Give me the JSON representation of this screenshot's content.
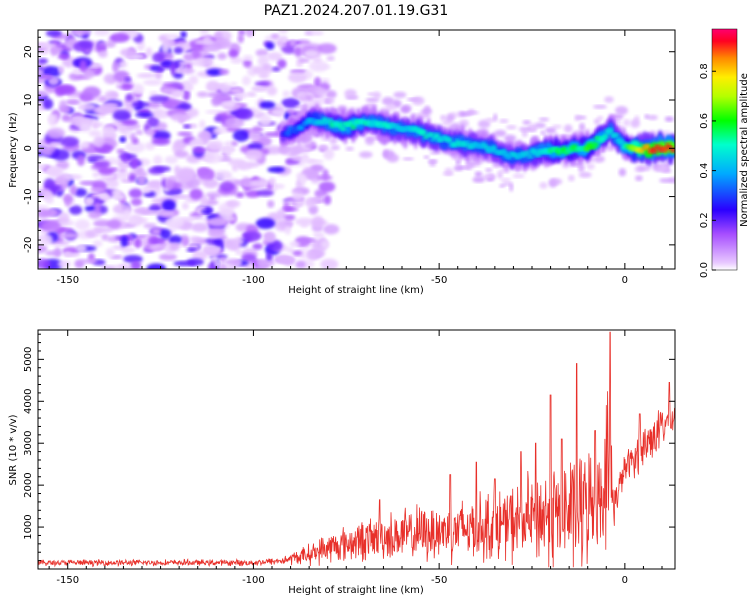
{
  "title": "PAZ1.2024.207.01.19.G31",
  "chart_data": [
    {
      "type": "heatmap",
      "xlabel": "Height of straight line (km)",
      "ylabel": "Frequency (Hz)",
      "xlim": [
        -158,
        13.5
      ],
      "ylim": [
        -25,
        24.5
      ],
      "xticks": [
        -150,
        -100,
        -50,
        0
      ],
      "yticks": [
        -20,
        -10,
        0,
        10,
        20
      ],
      "colorbar": {
        "label": "Normalized spectral amplitude",
        "range": [
          0,
          0.97
        ],
        "ticks": [
          0.0,
          0.2,
          0.4,
          0.6,
          0.8
        ]
      },
      "noise_region_x": [
        -158,
        -83
      ],
      "signal_track": [
        {
          "x": -92,
          "f": 2.5,
          "a": 0.28
        },
        {
          "x": -88,
          "f": 4.5,
          "a": 0.35
        },
        {
          "x": -84,
          "f": 6.0,
          "a": 0.4
        },
        {
          "x": -80,
          "f": 5.5,
          "a": 0.5
        },
        {
          "x": -76,
          "f": 4.5,
          "a": 0.55
        },
        {
          "x": -72,
          "f": 5.0,
          "a": 0.56
        },
        {
          "x": -68,
          "f": 5.5,
          "a": 0.5
        },
        {
          "x": -64,
          "f": 4.5,
          "a": 0.5
        },
        {
          "x": -60,
          "f": 4.0,
          "a": 0.47
        },
        {
          "x": -56,
          "f": 3.5,
          "a": 0.5
        },
        {
          "x": -52,
          "f": 2.5,
          "a": 0.5
        },
        {
          "x": -48,
          "f": 1.5,
          "a": 0.45
        },
        {
          "x": -44,
          "f": 1.0,
          "a": 0.5
        },
        {
          "x": -40,
          "f": 0.5,
          "a": 0.45
        },
        {
          "x": -36,
          "f": 0.0,
          "a": 0.45
        },
        {
          "x": -32,
          "f": -1.5,
          "a": 0.45
        },
        {
          "x": -28,
          "f": -1.5,
          "a": 0.45
        },
        {
          "x": -24,
          "f": -1.0,
          "a": 0.5
        },
        {
          "x": -20,
          "f": -0.5,
          "a": 0.55
        },
        {
          "x": -16,
          "f": -0.5,
          "a": 0.6
        },
        {
          "x": -12,
          "f": 0.0,
          "a": 0.55
        },
        {
          "x": -9,
          "f": 0.5,
          "a": 0.65
        },
        {
          "x": -6,
          "f": 2.5,
          "a": 0.55
        },
        {
          "x": -4,
          "f": 4.0,
          "a": 0.5
        },
        {
          "x": -2,
          "f": 2.0,
          "a": 0.45
        },
        {
          "x": 0,
          "f": 0.5,
          "a": 0.55
        },
        {
          "x": 3,
          "f": 0.0,
          "a": 0.75
        },
        {
          "x": 7,
          "f": 0.0,
          "a": 0.9
        },
        {
          "x": 11,
          "f": 0.0,
          "a": 0.95
        },
        {
          "x": 13.5,
          "f": 0.0,
          "a": 0.95
        }
      ]
    },
    {
      "type": "line",
      "xlabel": "Height of straight line (km)",
      "ylabel": "SNR (10 * v/v)",
      "xlim": [
        -158,
        13.5
      ],
      "ylim": [
        0,
        5700
      ],
      "xticks": [
        -150,
        -100,
        -50,
        0
      ],
      "yticks": [
        1000,
        2000,
        3000,
        4000,
        5000
      ],
      "color": "#e8302a",
      "series": [
        {
          "envelope_x": [
            -158,
            -100,
            -92,
            -85,
            -80,
            -70,
            -60,
            -50,
            -40,
            -30,
            -20,
            -12,
            -6,
            -4,
            -3,
            0,
            5,
            10,
            13.5
          ],
          "envelope_mean": [
            150,
            150,
            200,
            350,
            500,
            700,
            800,
            900,
            1000,
            1100,
            1300,
            1400,
            1800,
            2600,
            1500,
            2400,
            2900,
            3400,
            3600
          ],
          "envelope_amplitude": [
            90,
            90,
            120,
            300,
            450,
            600,
            750,
            850,
            950,
            1100,
            1500,
            1800,
            1200,
            3000,
            600,
            400,
            700,
            600,
            500
          ],
          "spikes": [
            {
              "x": -66,
              "y": 1650
            },
            {
              "x": -47,
              "y": 2250
            },
            {
              "x": -40,
              "y": 2550
            },
            {
              "x": -35,
              "y": 2150
            },
            {
              "x": -28,
              "y": 2800
            },
            {
              "x": -24,
              "y": 3000
            },
            {
              "x": -20,
              "y": 4150
            },
            {
              "x": -17,
              "y": 3100
            },
            {
              "x": -13,
              "y": 4900
            },
            {
              "x": -8,
              "y": 3300
            },
            {
              "x": -4,
              "y": 5650
            },
            {
              "x": 4,
              "y": 3700
            },
            {
              "x": 12,
              "y": 4450
            }
          ]
        }
      ]
    }
  ]
}
